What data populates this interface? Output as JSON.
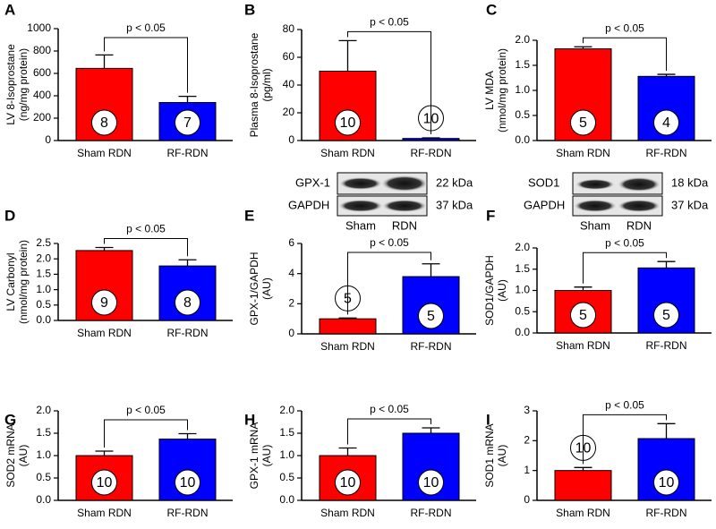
{
  "chart_data": [
    {
      "type": "bar",
      "panel": "A",
      "ylabel": [
        "LV 8-Isoprostane",
        "(ng/mg protein)"
      ],
      "categories": [
        "Sham RDN",
        "RF-RDN"
      ],
      "values": [
        645,
        340
      ],
      "errors": [
        120,
        55
      ],
      "n_labels": [
        8,
        7
      ],
      "bar_colors": [
        "#ff0000",
        "#0000ff"
      ],
      "annotation": "p < 0.05",
      "ylim": [
        0,
        1000
      ],
      "yticks": [
        0,
        200,
        400,
        600,
        800,
        1000
      ]
    },
    {
      "type": "bar",
      "panel": "B",
      "ylabel": [
        "Plasma 8-Isoprostane",
        "(pg/ml)"
      ],
      "categories": [
        "Sham RDN",
        "RF-RDN"
      ],
      "values": [
        50,
        1.5
      ],
      "errors": [
        22,
        0.4
      ],
      "n_labels": [
        10,
        10
      ],
      "bar_colors": [
        "#ff0000",
        "#0000ff"
      ],
      "annotation": "p < 0.05",
      "ylim": [
        0,
        80
      ],
      "yticks": [
        0,
        20,
        40,
        60,
        80
      ]
    },
    {
      "type": "bar",
      "panel": "C",
      "ylabel": [
        "LV MDA",
        "(nmol/mg protein)"
      ],
      "categories": [
        "Sham RDN",
        "RF-RDN"
      ],
      "values": [
        1.83,
        1.28
      ],
      "errors": [
        0.04,
        0.04
      ],
      "n_labels": [
        5,
        4
      ],
      "bar_colors": [
        "#ff0000",
        "#0000ff"
      ],
      "annotation": "p < 0.05",
      "ylim": [
        0,
        2
      ],
      "yticks": [
        {
          "value": 0,
          "label": "0.0"
        },
        0.5,
        {
          "value": 1,
          "label": "1.0"
        },
        1.5,
        {
          "value": 2,
          "label": "2.0"
        }
      ]
    },
    {
      "type": "bar",
      "panel": "D",
      "ylabel": [
        "LV Carbonyl",
        "(nmol/mg protein)"
      ],
      "categories": [
        "Sham RDN",
        "RF-RDN"
      ],
      "values": [
        2.27,
        1.77
      ],
      "errors": [
        0.1,
        0.2
      ],
      "n_labels": [
        9,
        8
      ],
      "bar_colors": [
        "#ff0000",
        "#0000ff"
      ],
      "annotation": "p < 0.05",
      "ylim": [
        0,
        2.5
      ],
      "yticks": [
        {
          "value": 0,
          "label": "0.0"
        },
        0.5,
        {
          "value": 1,
          "label": "1.0"
        },
        1.5,
        {
          "value": 2,
          "label": "2.0"
        },
        2.5
      ]
    },
    {
      "type": "bar",
      "panel": "E",
      "ylabel": [
        "GPX-1/GAPDH",
        "(AU)"
      ],
      "categories": [
        "Sham RDN",
        "RF-RDN"
      ],
      "values": [
        1.0,
        3.8
      ],
      "errors": [
        0.05,
        0.85
      ],
      "n_labels": [
        5,
        5
      ],
      "bar_colors": [
        "#ff0000",
        "#0000ff"
      ],
      "annotation": "p < 0.05",
      "ylim": [
        0,
        6
      ],
      "yticks": [
        0,
        2,
        4,
        6
      ]
    },
    {
      "type": "bar",
      "panel": "F",
      "ylabel": [
        "SOD1/GAPDH",
        "(AU)"
      ],
      "categories": [
        "Sham RDN",
        "RF-RDN"
      ],
      "values": [
        1.0,
        1.53
      ],
      "errors": [
        0.08,
        0.15
      ],
      "n_labels": [
        5,
        5
      ],
      "bar_colors": [
        "#ff0000",
        "#0000ff"
      ],
      "annotation": "p < 0.05",
      "ylim": [
        0,
        2
      ],
      "yticks": [
        {
          "value": 0,
          "label": "0.0"
        },
        0.5,
        {
          "value": 1,
          "label": "1.0"
        },
        1.5,
        {
          "value": 2,
          "label": "2.0"
        }
      ]
    },
    {
      "type": "bar",
      "panel": "G",
      "ylabel": [
        "SOD2 mRNA",
        "(AU)"
      ],
      "categories": [
        "Sham RDN",
        "RF-RDN"
      ],
      "values": [
        1.0,
        1.37
      ],
      "errors": [
        0.1,
        0.12
      ],
      "n_labels": [
        10,
        10
      ],
      "bar_colors": [
        "#ff0000",
        "#0000ff"
      ],
      "annotation": "p < 0.05",
      "ylim": [
        0,
        2
      ],
      "yticks": [
        {
          "value": 0,
          "label": "0.0"
        },
        0.5,
        {
          "value": 1,
          "label": "1.0"
        },
        1.5,
        {
          "value": 2,
          "label": "2.0"
        }
      ]
    },
    {
      "type": "bar",
      "panel": "H",
      "ylabel": [
        "GPX-1 mRNA",
        "(AU)"
      ],
      "categories": [
        "Sham RDN",
        "RF-RDN"
      ],
      "values": [
        1.0,
        1.5
      ],
      "errors": [
        0.17,
        0.12
      ],
      "n_labels": [
        10,
        10
      ],
      "bar_colors": [
        "#ff0000",
        "#0000ff"
      ],
      "annotation": "p < 0.05",
      "ylim": [
        0,
        2
      ],
      "yticks": [
        {
          "value": 0,
          "label": "0.0"
        },
        0.5,
        {
          "value": 1,
          "label": "1.0"
        },
        1.5,
        {
          "value": 2,
          "label": "2.0"
        }
      ]
    },
    {
      "type": "bar",
      "panel": "I",
      "ylabel": [
        "SOD1 mRNA",
        "(AU)"
      ],
      "categories": [
        "Sham RDN",
        "RF-RDN"
      ],
      "values": [
        1.0,
        2.07
      ],
      "errors": [
        0.1,
        0.5
      ],
      "n_labels": [
        10,
        10
      ],
      "bar_colors": [
        "#ff0000",
        "#0000ff"
      ],
      "annotation": "p < 0.05",
      "ylim": [
        0,
        3
      ],
      "yticks": [
        0,
        1,
        2,
        3
      ]
    }
  ],
  "blots": [
    {
      "bands": [
        {
          "name": "GPX-1",
          "size": "22 kDa"
        },
        {
          "name": "GAPDH",
          "size": "37 kDa"
        }
      ],
      "lanes": [
        "Sham",
        "RDN"
      ]
    },
    {
      "bands": [
        {
          "name": "SOD1",
          "size": "18 kDa"
        },
        {
          "name": "GAPDH",
          "size": "37 kDa"
        }
      ],
      "lanes": [
        "Sham",
        "RDN"
      ]
    }
  ]
}
